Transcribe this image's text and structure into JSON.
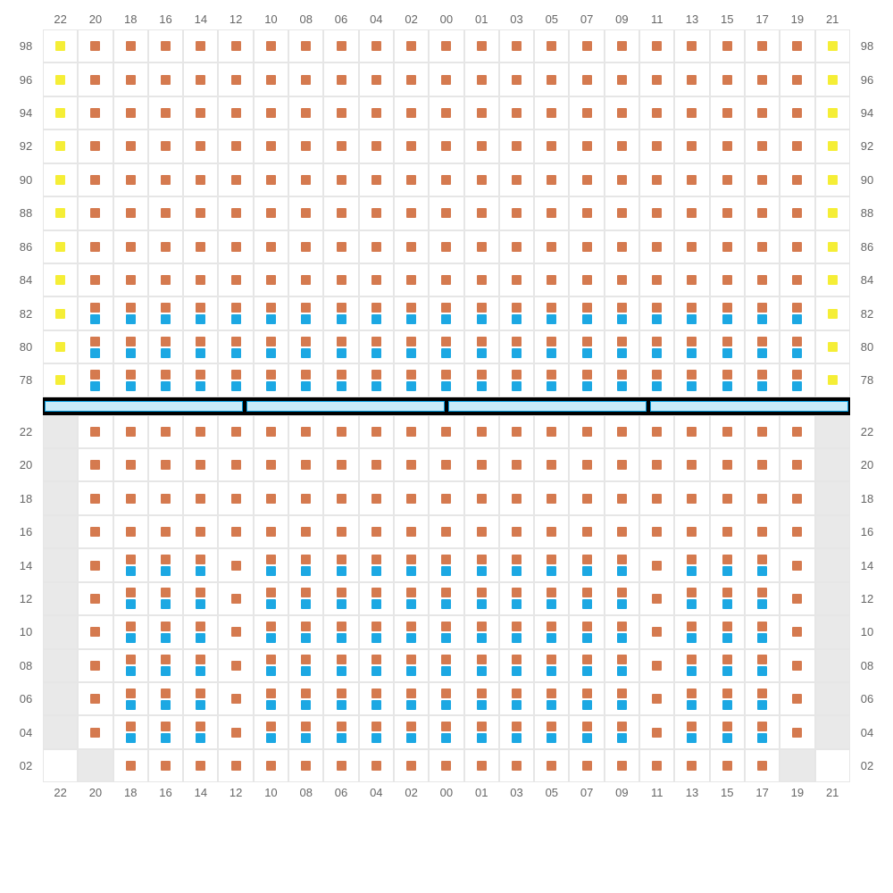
{
  "colors": {
    "orange": "#d57a4f",
    "blue": "#1ca8e3",
    "yellow": "#f5ee36",
    "gray_bg": "#e9e9e9",
    "grid": "#e6e6e6",
    "text": "#666666",
    "divider_fill": "#c8ecf9",
    "divider_border": "#0099dd",
    "divider_bg": "#000000"
  },
  "column_labels": [
    "22",
    "20",
    "18",
    "16",
    "14",
    "12",
    "10",
    "08",
    "06",
    "04",
    "02",
    "00",
    "01",
    "03",
    "05",
    "07",
    "09",
    "11",
    "13",
    "15",
    "17",
    "19",
    "21"
  ],
  "top_section": {
    "row_labels": [
      "98",
      "96",
      "94",
      "92",
      "90",
      "88",
      "86",
      "84",
      "82",
      "80",
      "78"
    ],
    "rows": [
      {
        "label": "98",
        "cells": [
          "Y",
          "O",
          "O",
          "O",
          "O",
          "O",
          "O",
          "O",
          "O",
          "O",
          "O",
          "O",
          "O",
          "O",
          "O",
          "O",
          "O",
          "O",
          "O",
          "O",
          "O",
          "O",
          "Y"
        ]
      },
      {
        "label": "96",
        "cells": [
          "Y",
          "O",
          "O",
          "O",
          "O",
          "O",
          "O",
          "O",
          "O",
          "O",
          "O",
          "O",
          "O",
          "O",
          "O",
          "O",
          "O",
          "O",
          "O",
          "O",
          "O",
          "O",
          "Y"
        ]
      },
      {
        "label": "94",
        "cells": [
          "Y",
          "O",
          "O",
          "O",
          "O",
          "O",
          "O",
          "O",
          "O",
          "O",
          "O",
          "O",
          "O",
          "O",
          "O",
          "O",
          "O",
          "O",
          "O",
          "O",
          "O",
          "O",
          "Y"
        ]
      },
      {
        "label": "92",
        "cells": [
          "Y",
          "O",
          "O",
          "O",
          "O",
          "O",
          "O",
          "O",
          "O",
          "O",
          "O",
          "O",
          "O",
          "O",
          "O",
          "O",
          "O",
          "O",
          "O",
          "O",
          "O",
          "O",
          "Y"
        ]
      },
      {
        "label": "90",
        "cells": [
          "Y",
          "O",
          "O",
          "O",
          "O",
          "O",
          "O",
          "O",
          "O",
          "O",
          "O",
          "O",
          "O",
          "O",
          "O",
          "O",
          "O",
          "O",
          "O",
          "O",
          "O",
          "O",
          "Y"
        ]
      },
      {
        "label": "88",
        "cells": [
          "Y",
          "O",
          "O",
          "O",
          "O",
          "O",
          "O",
          "O",
          "O",
          "O",
          "O",
          "O",
          "O",
          "O",
          "O",
          "O",
          "O",
          "O",
          "O",
          "O",
          "O",
          "O",
          "Y"
        ]
      },
      {
        "label": "86",
        "cells": [
          "Y",
          "O",
          "O",
          "O",
          "O",
          "O",
          "O",
          "O",
          "O",
          "O",
          "O",
          "O",
          "O",
          "O",
          "O",
          "O",
          "O",
          "O",
          "O",
          "O",
          "O",
          "O",
          "Y"
        ]
      },
      {
        "label": "84",
        "cells": [
          "Y",
          "O",
          "O",
          "O",
          "O",
          "O",
          "O",
          "O",
          "O",
          "O",
          "O",
          "O",
          "O",
          "O",
          "O",
          "O",
          "O",
          "O",
          "O",
          "O",
          "O",
          "O",
          "Y"
        ]
      },
      {
        "label": "82",
        "cells": [
          "Y",
          "OB",
          "OB",
          "OB",
          "OB",
          "OB",
          "OB",
          "OB",
          "OB",
          "OB",
          "OB",
          "OB",
          "OB",
          "OB",
          "OB",
          "OB",
          "OB",
          "OB",
          "OB",
          "OB",
          "OB",
          "OB",
          "Y"
        ]
      },
      {
        "label": "80",
        "cells": [
          "Y",
          "OB",
          "OB",
          "OB",
          "OB",
          "OB",
          "OB",
          "OB",
          "OB",
          "OB",
          "OB",
          "OB",
          "OB",
          "OB",
          "OB",
          "OB",
          "OB",
          "OB",
          "OB",
          "OB",
          "OB",
          "OB",
          "Y"
        ]
      },
      {
        "label": "78",
        "cells": [
          "Y",
          "OB",
          "OB",
          "OB",
          "OB",
          "OB",
          "OB",
          "OB",
          "OB",
          "OB",
          "OB",
          "OB",
          "OB",
          "OB",
          "OB",
          "OB",
          "OB",
          "OB",
          "OB",
          "OB",
          "OB",
          "OB",
          "Y"
        ]
      }
    ]
  },
  "divider_segments": 4,
  "bottom_section": {
    "row_labels": [
      "22",
      "20",
      "18",
      "16",
      "14",
      "12",
      "10",
      "08",
      "06",
      "04",
      "02"
    ],
    "rows": [
      {
        "label": "22",
        "cells": [
          "G",
          "O",
          "O",
          "O",
          "O",
          "O",
          "O",
          "O",
          "O",
          "O",
          "O",
          "O",
          "O",
          "O",
          "O",
          "O",
          "O",
          "O",
          "O",
          "O",
          "O",
          "O",
          "G"
        ]
      },
      {
        "label": "20",
        "cells": [
          "G",
          "O",
          "O",
          "O",
          "O",
          "O",
          "O",
          "O",
          "O",
          "O",
          "O",
          "O",
          "O",
          "O",
          "O",
          "O",
          "O",
          "O",
          "O",
          "O",
          "O",
          "O",
          "G"
        ]
      },
      {
        "label": "18",
        "cells": [
          "G",
          "O",
          "O",
          "O",
          "O",
          "O",
          "O",
          "O",
          "O",
          "O",
          "O",
          "O",
          "O",
          "O",
          "O",
          "O",
          "O",
          "O",
          "O",
          "O",
          "O",
          "O",
          "G"
        ]
      },
      {
        "label": "16",
        "cells": [
          "G",
          "O",
          "O",
          "O",
          "O",
          "O",
          "O",
          "O",
          "O",
          "O",
          "O",
          "O",
          "O",
          "O",
          "O",
          "O",
          "O",
          "O",
          "O",
          "O",
          "O",
          "O",
          "G"
        ]
      },
      {
        "label": "14",
        "cells": [
          "G",
          "O",
          "OB",
          "OB",
          "OB",
          "O",
          "OB",
          "OB",
          "OB",
          "OB",
          "OB",
          "OB",
          "OB",
          "OB",
          "OB",
          "OB",
          "OB",
          "O",
          "OB",
          "OB",
          "OB",
          "O",
          "G"
        ]
      },
      {
        "label": "12",
        "cells": [
          "G",
          "O",
          "OB",
          "OB",
          "OB",
          "O",
          "OB",
          "OB",
          "OB",
          "OB",
          "OB",
          "OB",
          "OB",
          "OB",
          "OB",
          "OB",
          "OB",
          "O",
          "OB",
          "OB",
          "OB",
          "O",
          "G"
        ]
      },
      {
        "label": "10",
        "cells": [
          "G",
          "O",
          "OB",
          "OB",
          "OB",
          "O",
          "OB",
          "OB",
          "OB",
          "OB",
          "OB",
          "OB",
          "OB",
          "OB",
          "OB",
          "OB",
          "OB",
          "O",
          "OB",
          "OB",
          "OB",
          "O",
          "G"
        ]
      },
      {
        "label": "08",
        "cells": [
          "G",
          "O",
          "OB",
          "OB",
          "OB",
          "O",
          "OB",
          "OB",
          "OB",
          "OB",
          "OB",
          "OB",
          "OB",
          "OB",
          "OB",
          "OB",
          "OB",
          "O",
          "OB",
          "OB",
          "OB",
          "O",
          "G"
        ]
      },
      {
        "label": "06",
        "cells": [
          "G",
          "O",
          "OB",
          "OB",
          "OB",
          "O",
          "OB",
          "OB",
          "OB",
          "OB",
          "OB",
          "OB",
          "OB",
          "OB",
          "OB",
          "OB",
          "OB",
          "O",
          "OB",
          "OB",
          "OB",
          "O",
          "G"
        ]
      },
      {
        "label": "04",
        "cells": [
          "G",
          "O",
          "OB",
          "OB",
          "OB",
          "O",
          "OB",
          "OB",
          "OB",
          "OB",
          "OB",
          "OB",
          "OB",
          "OB",
          "OB",
          "OB",
          "OB",
          "O",
          "OB",
          "OB",
          "OB",
          "O",
          "G"
        ]
      },
      {
        "label": "02",
        "cells": [
          "E",
          "G",
          "O",
          "O",
          "O",
          "O",
          "O",
          "O",
          "O",
          "O",
          "O",
          "O",
          "O",
          "O",
          "O",
          "O",
          "O",
          "O",
          "O",
          "O",
          "O",
          "G",
          "E"
        ]
      }
    ]
  }
}
